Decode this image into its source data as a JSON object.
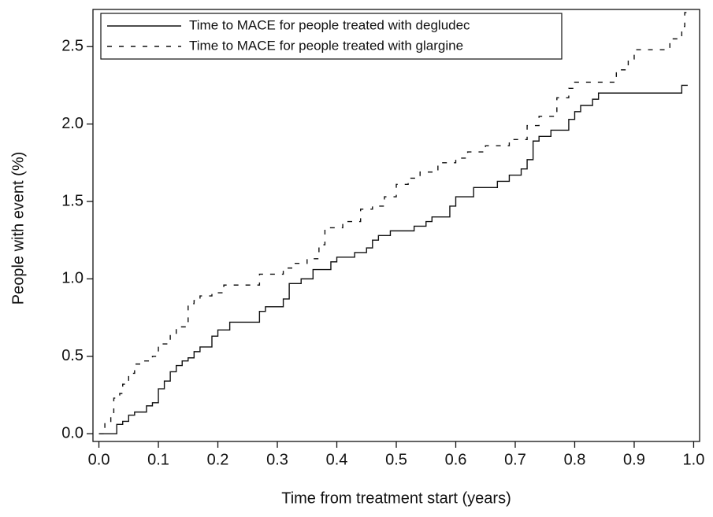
{
  "chart_data": {
    "type": "line",
    "drawstyle": "steps-post",
    "x_label": "Time from treatment start (years)",
    "y_label": "People with event (%)",
    "xlim": [
      -0.01,
      1.01
    ],
    "ylim": [
      -0.05,
      2.74
    ],
    "xticks": [
      {
        "value": 0,
        "label": "0.0"
      },
      0.1,
      0.2,
      0.3,
      0.4,
      0.5,
      0.6,
      0.7,
      0.8,
      0.9,
      {
        "value": 1,
        "label": "1.0"
      }
    ],
    "yticks": [
      {
        "value": 0,
        "label": "0.0"
      },
      0.5,
      {
        "value": 1,
        "label": "1.0"
      },
      1.5,
      {
        "value": 2,
        "label": "2.0"
      },
      2.5
    ],
    "legend": "top-left",
    "series": [
      {
        "name": "Time to MACE for people treated with degludec",
        "color": "#111111",
        "dash": "solid",
        "x": [
          0,
          0.03,
          0.04,
          0.05,
          0.06,
          0.08,
          0.09,
          0.1,
          0.11,
          0.12,
          0.13,
          0.14,
          0.15,
          0.16,
          0.17,
          0.19,
          0.2,
          0.22,
          0.27,
          0.28,
          0.31,
          0.32,
          0.34,
          0.36,
          0.39,
          0.4,
          0.43,
          0.45,
          0.46,
          0.47,
          0.49,
          0.53,
          0.55,
          0.56,
          0.59,
          0.6,
          0.63,
          0.67,
          0.69,
          0.71,
          0.72,
          0.73,
          0.74,
          0.76,
          0.79,
          0.8,
          0.81,
          0.83,
          0.84,
          0.98,
          0.99
        ],
        "values": [
          0,
          0.06,
          0.08,
          0.12,
          0.14,
          0.18,
          0.2,
          0.29,
          0.34,
          0.4,
          0.44,
          0.47,
          0.49,
          0.53,
          0.56,
          0.63,
          0.67,
          0.72,
          0.79,
          0.82,
          0.87,
          0.97,
          1.0,
          1.06,
          1.11,
          1.14,
          1.17,
          1.2,
          1.25,
          1.28,
          1.31,
          1.34,
          1.37,
          1.4,
          1.47,
          1.53,
          1.59,
          1.63,
          1.67,
          1.71,
          1.77,
          1.89,
          1.92,
          1.96,
          2.03,
          2.08,
          2.12,
          2.16,
          2.2,
          2.25,
          2.25
        ]
      },
      {
        "name": "Time to MACE for people treated with glargine",
        "color": "#111111",
        "dash": "dashed",
        "x": [
          0,
          0.01,
          0.02,
          0.025,
          0.035,
          0.04,
          0.05,
          0.06,
          0.07,
          0.09,
          0.1,
          0.12,
          0.13,
          0.15,
          0.16,
          0.17,
          0.19,
          0.21,
          0.27,
          0.31,
          0.33,
          0.35,
          0.37,
          0.38,
          0.41,
          0.44,
          0.46,
          0.48,
          0.5,
          0.52,
          0.54,
          0.57,
          0.6,
          0.62,
          0.65,
          0.69,
          0.72,
          0.74,
          0.77,
          0.79,
          0.8,
          0.87,
          0.89,
          0.9,
          0.96,
          0.98,
          0.985,
          0.99
        ],
        "values": [
          0,
          0.07,
          0.12,
          0.23,
          0.26,
          0.32,
          0.39,
          0.45,
          0.47,
          0.5,
          0.58,
          0.64,
          0.69,
          0.84,
          0.86,
          0.89,
          0.91,
          0.96,
          1.03,
          1.07,
          1.1,
          1.13,
          1.22,
          1.33,
          1.37,
          1.45,
          1.47,
          1.53,
          1.61,
          1.65,
          1.69,
          1.75,
          1.78,
          1.82,
          1.86,
          1.9,
          1.99,
          2.05,
          2.17,
          2.23,
          2.27,
          2.35,
          2.42,
          2.48,
          2.55,
          2.63,
          2.72,
          2.72
        ]
      }
    ]
  }
}
